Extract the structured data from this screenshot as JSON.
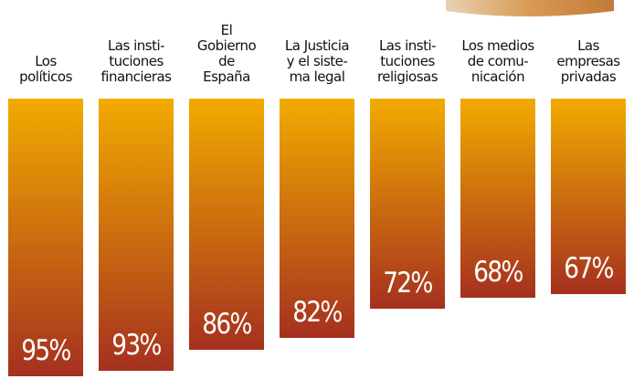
{
  "chart_data": {
    "type": "bar",
    "categories": [
      "Los\npolíticos",
      "Las insti-\ntuciones\nfinancieras",
      "El\nGobierno\nde\nEspaña",
      "La Justicia\ny el siste-\nma legal",
      "Las insti-\ntuciones\nreligiosas",
      "Los medios\nde comu-\nnicación",
      "Las\nempresas\nprivadas"
    ],
    "values": [
      95,
      93,
      86,
      82,
      72,
      68,
      67
    ],
    "value_labels": [
      "95%",
      "93%",
      "86%",
      "82%",
      "72%",
      "68%",
      "67%"
    ],
    "color": [
      "#f2ab00",
      "#a5301f"
    ]
  }
}
